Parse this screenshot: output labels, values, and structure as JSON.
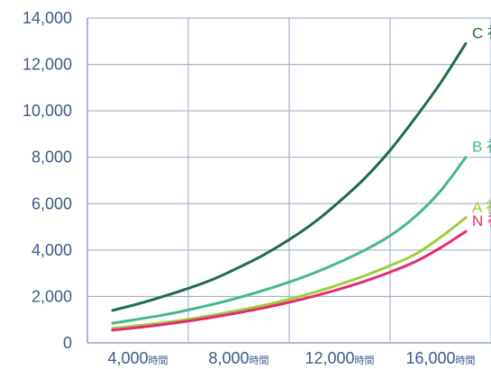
{
  "chart_data": {
    "type": "line",
    "title": "",
    "xlabel": "",
    "ylabel": "",
    "xlim": [
      2000,
      18000
    ],
    "ylim": [
      0,
      14000
    ],
    "x_ticks": [
      4000,
      8000,
      12000,
      16000
    ],
    "x_tick_labels": [
      {
        "num": "4,000",
        "unit": "時間"
      },
      {
        "num": "8,000",
        "unit": "時間"
      },
      {
        "num": "12,000",
        "unit": "時間"
      },
      {
        "num": "16,000",
        "unit": "時間"
      }
    ],
    "y_ticks": [
      0,
      2000,
      4000,
      6000,
      8000,
      10000,
      12000,
      14000
    ],
    "y_tick_labels": [
      "0",
      "2,000",
      "4,000",
      "6,000",
      "8,000",
      "10,000",
      "12,000",
      "14,000"
    ],
    "grid": true,
    "x": [
      3000,
      4000,
      5000,
      6000,
      7000,
      8000,
      9000,
      10000,
      11000,
      12000,
      13000,
      14000,
      15000,
      16000,
      17000
    ],
    "series": [
      {
        "name": "C 社",
        "color": "#1e6b4c",
        "values": [
          1400,
          1680,
          2000,
          2350,
          2750,
          3250,
          3800,
          4450,
          5200,
          6100,
          7100,
          8300,
          9700,
          11200,
          12900
        ]
      },
      {
        "name": "B 社",
        "color": "#45b88a",
        "values": [
          850,
          1020,
          1200,
          1420,
          1670,
          1950,
          2270,
          2620,
          3020,
          3480,
          4000,
          4620,
          5450,
          6550,
          8000
        ]
      },
      {
        "name": "A 社",
        "color": "#9ccd3a",
        "values": [
          620,
          740,
          870,
          1020,
          1200,
          1400,
          1620,
          1880,
          2180,
          2520,
          2900,
          3330,
          3820,
          4550,
          5400
        ]
      },
      {
        "name": "N 社",
        "color": "#e32a73",
        "values": [
          550,
          660,
          790,
          940,
          1110,
          1300,
          1510,
          1750,
          2020,
          2320,
          2660,
          3050,
          3500,
          4100,
          4800
        ]
      }
    ]
  },
  "colors": {
    "grid": "#9aa6c4",
    "axis_text": "#3d5a8a"
  }
}
